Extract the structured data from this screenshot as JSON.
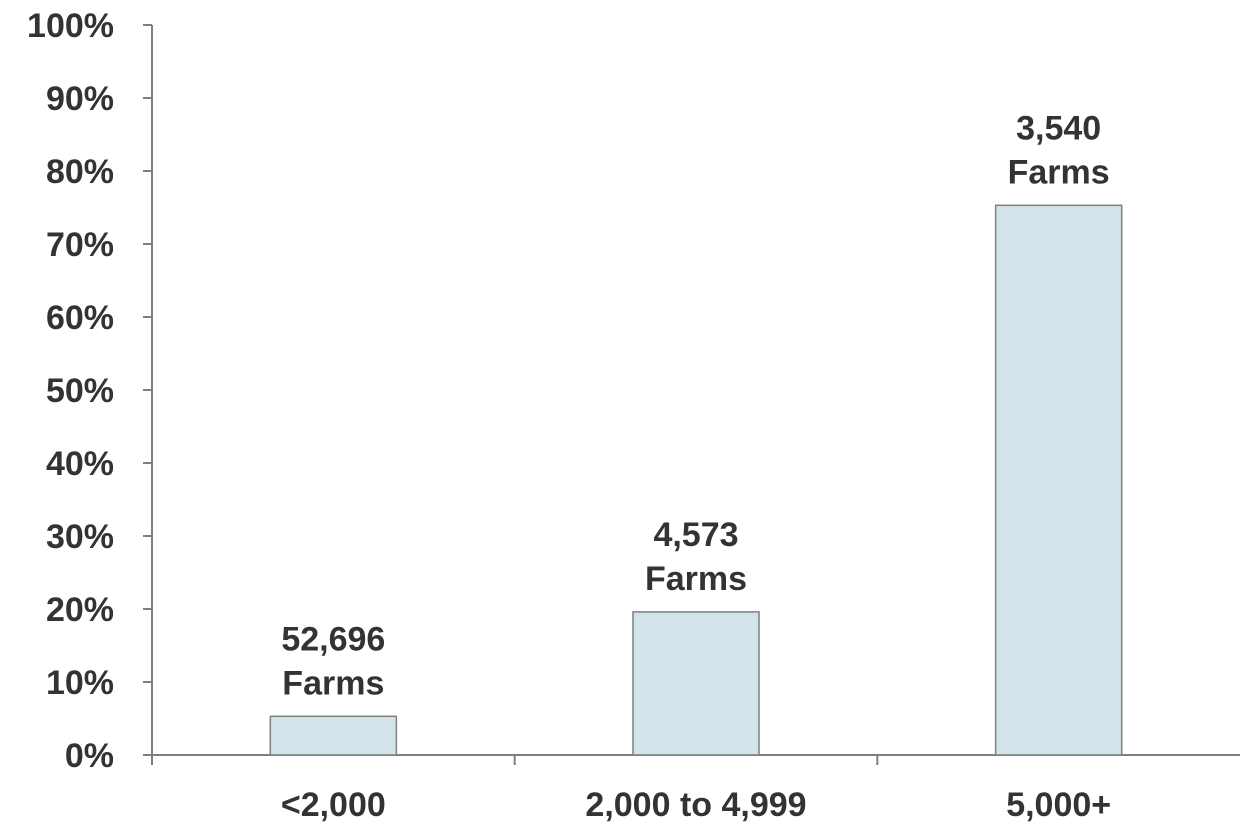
{
  "chart_data": {
    "type": "bar",
    "title": "",
    "xlabel": "",
    "ylabel": "",
    "categories": [
      "<2,000",
      "2,000 to 4,999",
      "5,000+"
    ],
    "values": [
      5.3,
      19.6,
      75.3
    ],
    "data_labels": [
      [
        "52,696",
        "Farms"
      ],
      [
        "4,573",
        "Farms"
      ],
      [
        "3,540",
        "Farms"
      ]
    ],
    "ylim": [
      0,
      100
    ],
    "y_ticks": [
      "0%",
      "10%",
      "20%",
      "30%",
      "40%",
      "50%",
      "60%",
      "70%",
      "80%",
      "90%",
      "100%"
    ],
    "grid": false,
    "legend": "none",
    "colors": {
      "bar_fill": "#d3e3ea",
      "bar_stroke": "#7f7f7f",
      "axis": "#7f7f7f",
      "text": "#333333"
    }
  }
}
